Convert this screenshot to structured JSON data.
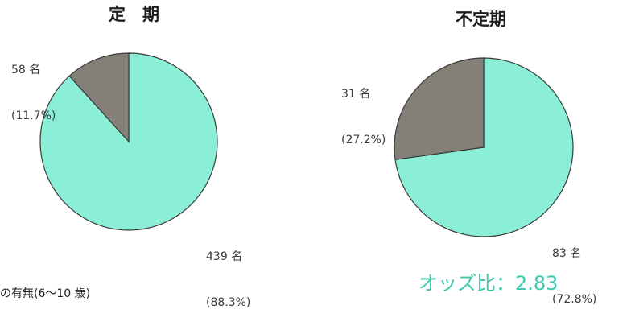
{
  "colors": {
    "slice_major": "#8aefd6",
    "slice_minor": "#858077",
    "outline": "#3a3a3a",
    "odds": "#3fc9ae"
  },
  "chart_data": [
    {
      "type": "pie",
      "title": "定　期",
      "slices": [
        {
          "count_label": "439 名",
          "percent_label": "(88.3%)",
          "value": 88.3
        },
        {
          "count_label": "58 名",
          "percent_label": "(11.7%)",
          "value": 11.7
        }
      ]
    },
    {
      "type": "pie",
      "title": "不定期",
      "slices": [
        {
          "count_label": "83 名",
          "percent_label": "(72.8%)",
          "value": 72.8
        },
        {
          "count_label": "31 名",
          "percent_label": "(27.2%)",
          "value": 27.2
        }
      ]
    }
  ],
  "odds_ratio": "オッズ比：2.83",
  "footnote": "の有無(6～10 歳)"
}
